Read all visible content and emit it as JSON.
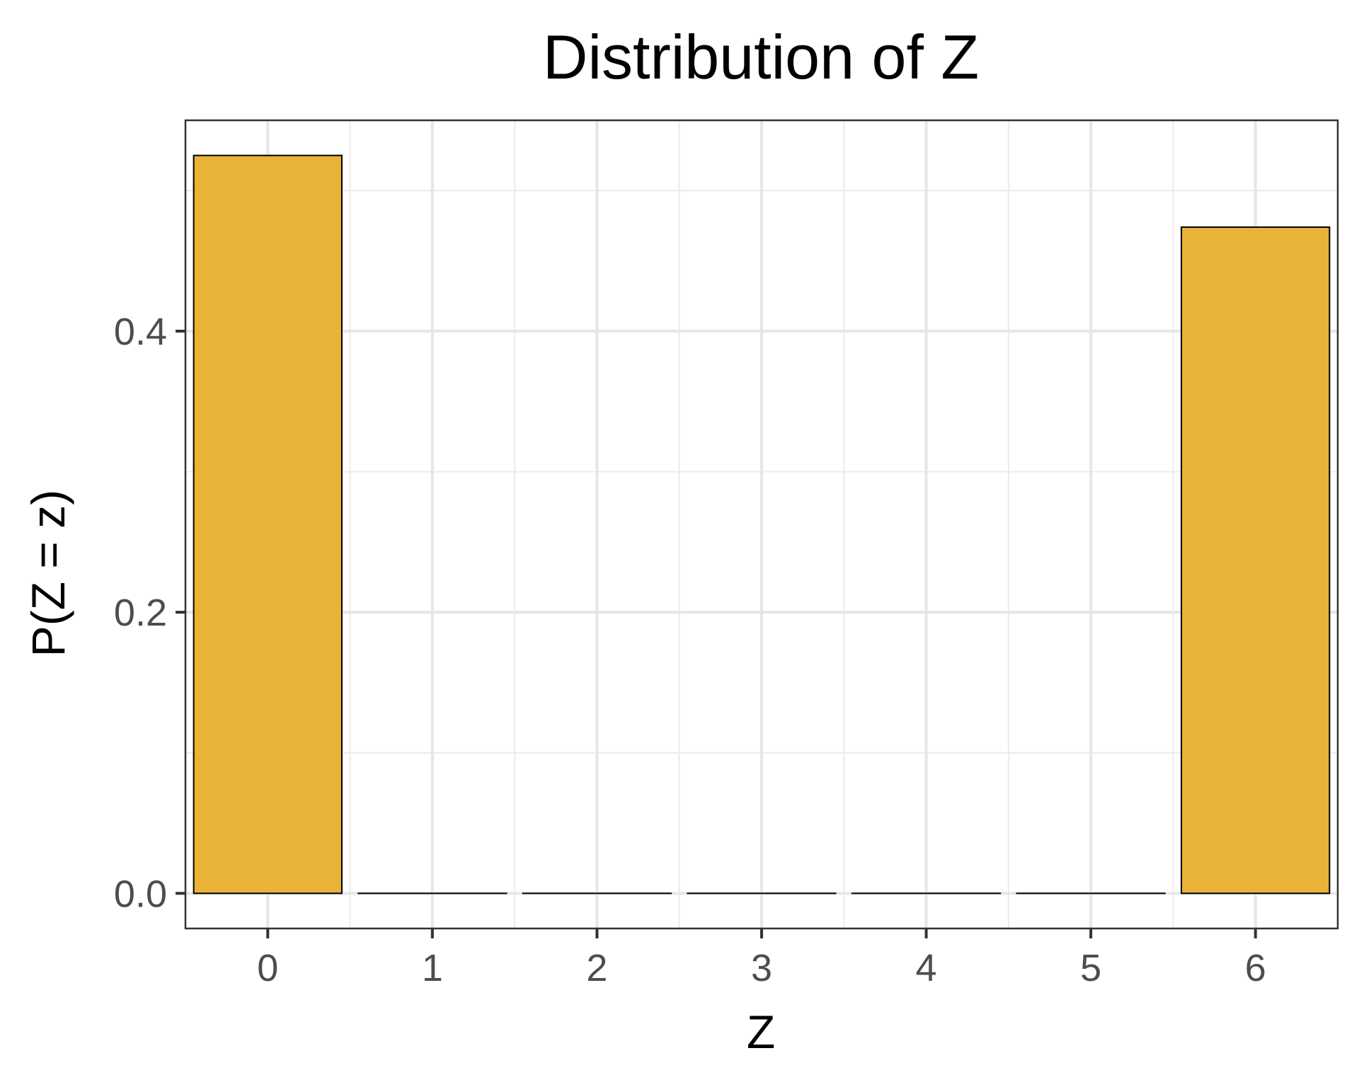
{
  "chart_data": {
    "type": "bar",
    "title": "Distribution of Z",
    "xlabel": "Z",
    "ylabel": "P(Z = z)",
    "categories": [
      0,
      1,
      2,
      3,
      4,
      5,
      6
    ],
    "values": [
      0.525,
      0.0,
      0.0,
      0.0,
      0.0,
      0.0,
      0.474
    ],
    "xlim": [
      -0.5,
      6.5
    ],
    "ylim": [
      -0.025,
      0.55
    ],
    "xticks": [
      "0",
      "1",
      "2",
      "3",
      "4",
      "5",
      "6"
    ],
    "yticks": [
      0.0,
      0.2,
      0.4
    ],
    "ytick_labels": [
      "0.0",
      "0.2",
      "0.4"
    ],
    "grid": true,
    "bar_color": "#E8B336",
    "bar_edge_color": "#000000"
  }
}
